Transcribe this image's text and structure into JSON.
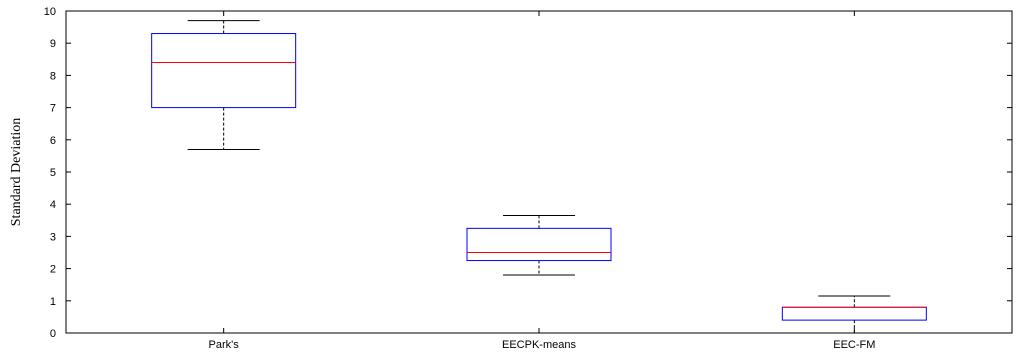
{
  "chart_data": {
    "type": "box",
    "title": "",
    "xlabel": "",
    "ylabel": "Standard Deviation",
    "ylim": [
      0,
      10
    ],
    "yticks": [
      "0",
      "1",
      "2",
      "3",
      "4",
      "5",
      "6",
      "7",
      "8",
      "9",
      "10"
    ],
    "categories": [
      "Park's",
      "EECPK-means",
      "EEC-FM"
    ],
    "boxes": [
      {
        "category": "Park's",
        "whisker_low": 5.7,
        "q1": 7.0,
        "median": 8.4,
        "q3": 9.3,
        "whisker_high": 9.7
      },
      {
        "category": "EECPK-means",
        "whisker_low": 1.8,
        "q1": 2.25,
        "median": 2.5,
        "q3": 3.25,
        "whisker_high": 3.65
      },
      {
        "category": "EEC-FM",
        "whisker_low": 0.0,
        "q1": 0.4,
        "median": 0.8,
        "q3": 0.8,
        "whisker_high": 1.15
      }
    ],
    "grid": false,
    "colors": {
      "box": "#0000ff",
      "median": "#ff0000",
      "whisker": "#000000",
      "axes": "#000000"
    }
  }
}
